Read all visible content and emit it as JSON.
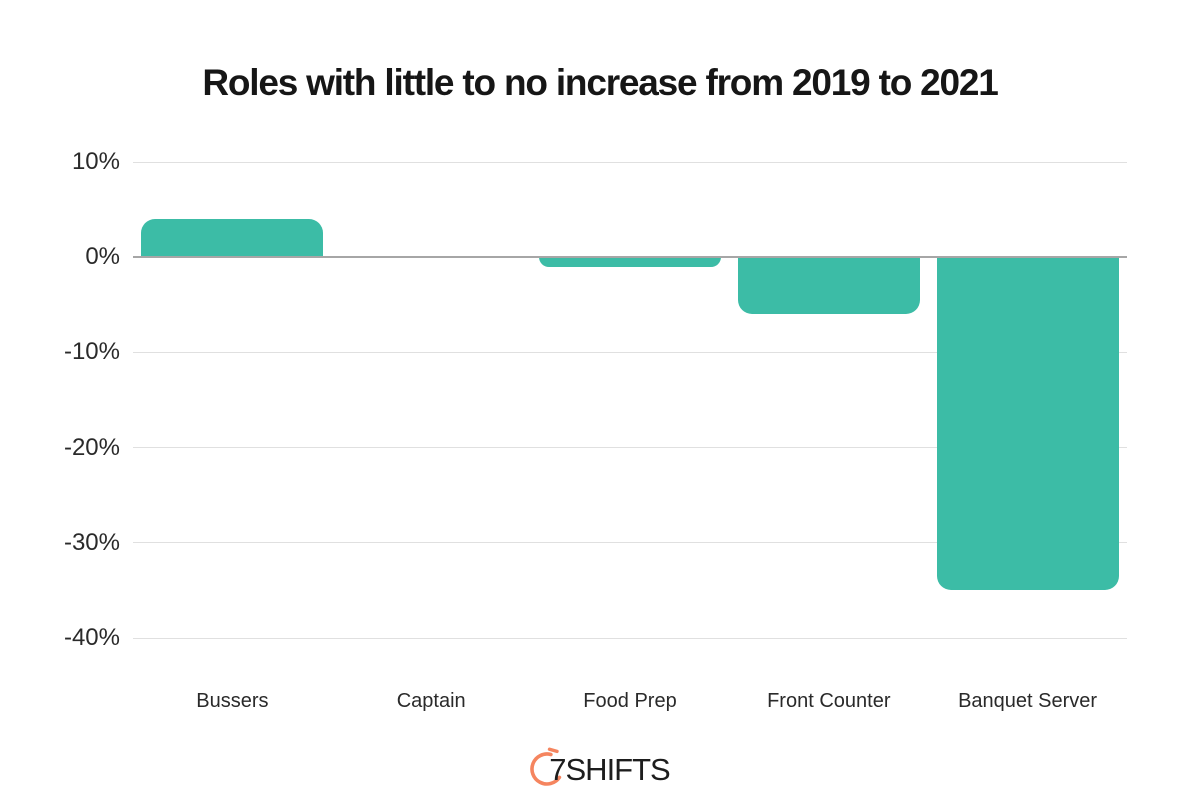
{
  "title": "Roles with little to no increase from 2019 to 2021",
  "logo": {
    "text": "7SHIFTS"
  },
  "colors": {
    "bar": "#3CBCA6",
    "gridline": "#E0E0E0",
    "zero_line": "#A6A6A6",
    "title": "#161616",
    "axis_label": "#2A2A2A",
    "background": "#FFFFFF",
    "logo_arc": "#F5855F",
    "logo_text": "#1D1D1D"
  },
  "chart_data": {
    "type": "bar",
    "title": "Roles with little to no increase from 2019 to 2021",
    "categories": [
      "Bussers",
      "Captain",
      "Food Prep",
      "Front Counter",
      "Banquet Server"
    ],
    "values": [
      4,
      0,
      -1,
      -6,
      -35
    ],
    "value_unit": "%",
    "xlabel": "",
    "ylabel": "",
    "ylim": [
      -40,
      10
    ],
    "yticks": [
      10,
      0,
      -10,
      -20,
      -30,
      -40
    ],
    "ytick_labels": [
      "10%",
      "0%",
      "-10%",
      "-20%",
      "-30%",
      "-40%"
    ],
    "grid": "horizontal",
    "legend": "none",
    "bar_color": "#3CBCA6"
  }
}
